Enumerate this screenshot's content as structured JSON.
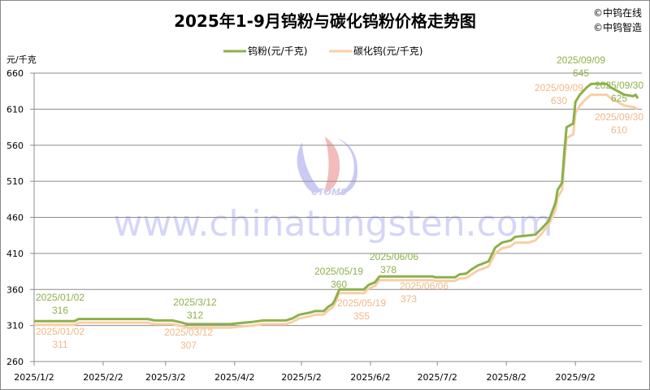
{
  "chart_data": {
    "type": "line",
    "title": "2025年1-9月钨粉与碳化钨粉价格走势图",
    "ylabel": "元/千克",
    "xlabel": "",
    "ylim": [
      260,
      660
    ],
    "yticks": [
      260,
      310,
      360,
      410,
      460,
      510,
      560,
      610,
      660
    ],
    "xlim": [
      "2025-01-02",
      "2025-09-30"
    ],
    "xticks": [
      {
        "date": "2025-01-02",
        "label": "2025/1/2"
      },
      {
        "date": "2025-02-02",
        "label": "2025/2/2"
      },
      {
        "date": "2025-03-02",
        "label": "2025/3/2"
      },
      {
        "date": "2025-04-02",
        "label": "2025/4/2"
      },
      {
        "date": "2025-05-02",
        "label": "2025/5/2"
      },
      {
        "date": "2025-06-02",
        "label": "2025/6/2"
      },
      {
        "date": "2025-07-02",
        "label": "2025/7/2"
      },
      {
        "date": "2025-08-02",
        "label": "2025/8/2"
      },
      {
        "date": "2025-09-02",
        "label": "2025/9/2"
      }
    ],
    "grid": true,
    "legend_position": "top-center",
    "series": [
      {
        "name": "钨粉(元/千克)",
        "color": "#8db04a",
        "points": [
          [
            "2025-01-02",
            316
          ],
          [
            "2025-01-20",
            316
          ],
          [
            "2025-01-22",
            319
          ],
          [
            "2025-02-22",
            319
          ],
          [
            "2025-02-25",
            317
          ],
          [
            "2025-03-05",
            317
          ],
          [
            "2025-03-08",
            315
          ],
          [
            "2025-03-12",
            312
          ],
          [
            "2025-03-31",
            312
          ],
          [
            "2025-04-03",
            313
          ],
          [
            "2025-04-10",
            315
          ],
          [
            "2025-04-15",
            317
          ],
          [
            "2025-04-25",
            317
          ],
          [
            "2025-04-28",
            320
          ],
          [
            "2025-05-01",
            325
          ],
          [
            "2025-05-06",
            328
          ],
          [
            "2025-05-08",
            330
          ],
          [
            "2025-05-12",
            330
          ],
          [
            "2025-05-14",
            336
          ],
          [
            "2025-05-16",
            340
          ],
          [
            "2025-05-17",
            345
          ],
          [
            "2025-05-19",
            360
          ],
          [
            "2025-05-30",
            360
          ],
          [
            "2025-06-01",
            366
          ],
          [
            "2025-06-04",
            370
          ],
          [
            "2025-06-06",
            378
          ],
          [
            "2025-06-30",
            378
          ],
          [
            "2025-07-01",
            377
          ],
          [
            "2025-07-10",
            377
          ],
          [
            "2025-07-12",
            381
          ],
          [
            "2025-07-15",
            382
          ],
          [
            "2025-07-17",
            387
          ],
          [
            "2025-07-20",
            393
          ],
          [
            "2025-07-25",
            399
          ],
          [
            "2025-07-28",
            418
          ],
          [
            "2025-07-31",
            425
          ],
          [
            "2025-08-04",
            428
          ],
          [
            "2025-08-06",
            433
          ],
          [
            "2025-08-12",
            435
          ],
          [
            "2025-08-15",
            436
          ],
          [
            "2025-08-18",
            445
          ],
          [
            "2025-08-21",
            455
          ],
          [
            "2025-08-24",
            480
          ],
          [
            "2025-08-25",
            498
          ],
          [
            "2025-08-27",
            508
          ],
          [
            "2025-08-28",
            550
          ],
          [
            "2025-08-29",
            585
          ],
          [
            "2025-09-01",
            590
          ],
          [
            "2025-09-02",
            620
          ],
          [
            "2025-09-04",
            630
          ],
          [
            "2025-09-07",
            640
          ],
          [
            "2025-09-09",
            645
          ],
          [
            "2025-09-16",
            645
          ],
          [
            "2025-09-18",
            640
          ],
          [
            "2025-09-21",
            635
          ],
          [
            "2025-09-24",
            630
          ],
          [
            "2025-09-28",
            628
          ],
          [
            "2025-09-29",
            630
          ],
          [
            "2025-09-30",
            625
          ]
        ],
        "annotations": [
          {
            "date": "2025-01-02",
            "label": "2025/01/02",
            "value": "316"
          },
          {
            "date": "2025-03-12",
            "label": "2025/3/12",
            "value": "312"
          },
          {
            "date": "2025-05-19",
            "label": "2025/05/19",
            "value": "360"
          },
          {
            "date": "2025-06-06",
            "label": "2025/06/06",
            "value": "378"
          },
          {
            "date": "2025-09-09",
            "label": "2025/09/09",
            "value": "645"
          },
          {
            "date": "2025-09-30",
            "label": "2025/09/30",
            "value": "625"
          }
        ]
      },
      {
        "name": "碳化钨(元/千克)",
        "color": "#f8cfa6",
        "points": [
          [
            "2025-01-02",
            311
          ],
          [
            "2025-01-20",
            311
          ],
          [
            "2025-01-22",
            314
          ],
          [
            "2025-02-22",
            314
          ],
          [
            "2025-02-25",
            312
          ],
          [
            "2025-03-05",
            312
          ],
          [
            "2025-03-08",
            310
          ],
          [
            "2025-03-12",
            307
          ],
          [
            "2025-03-31",
            307
          ],
          [
            "2025-04-03",
            308
          ],
          [
            "2025-04-10",
            310
          ],
          [
            "2025-04-15",
            312
          ],
          [
            "2025-04-25",
            312
          ],
          [
            "2025-04-28",
            315
          ],
          [
            "2025-05-01",
            320
          ],
          [
            "2025-05-06",
            323
          ],
          [
            "2025-05-08",
            325
          ],
          [
            "2025-05-12",
            325
          ],
          [
            "2025-05-14",
            331
          ],
          [
            "2025-05-16",
            335
          ],
          [
            "2025-05-17",
            340
          ],
          [
            "2025-05-19",
            355
          ],
          [
            "2025-05-30",
            355
          ],
          [
            "2025-06-01",
            361
          ],
          [
            "2025-06-04",
            365
          ],
          [
            "2025-06-06",
            373
          ],
          [
            "2025-06-30",
            373
          ],
          [
            "2025-07-01",
            372
          ],
          [
            "2025-07-10",
            372
          ],
          [
            "2025-07-12",
            375
          ],
          [
            "2025-07-15",
            376
          ],
          [
            "2025-07-17",
            380
          ],
          [
            "2025-07-20",
            386
          ],
          [
            "2025-07-25",
            392
          ],
          [
            "2025-07-28",
            410
          ],
          [
            "2025-07-31",
            417
          ],
          [
            "2025-08-04",
            420
          ],
          [
            "2025-08-06",
            425
          ],
          [
            "2025-08-12",
            425
          ],
          [
            "2025-08-15",
            428
          ],
          [
            "2025-08-18",
            438
          ],
          [
            "2025-08-21",
            450
          ],
          [
            "2025-08-24",
            470
          ],
          [
            "2025-08-25",
            488
          ],
          [
            "2025-08-27",
            498
          ],
          [
            "2025-08-28",
            535
          ],
          [
            "2025-08-29",
            570
          ],
          [
            "2025-09-01",
            575
          ],
          [
            "2025-09-02",
            605
          ],
          [
            "2025-09-04",
            615
          ],
          [
            "2025-09-07",
            625
          ],
          [
            "2025-09-09",
            630
          ],
          [
            "2025-09-16",
            630
          ],
          [
            "2025-09-18",
            625
          ],
          [
            "2025-09-21",
            620
          ],
          [
            "2025-09-24",
            615
          ],
          [
            "2025-09-28",
            613
          ],
          [
            "2025-09-30",
            610
          ]
        ],
        "annotations": [
          {
            "date": "2025-01-02",
            "label": "2025/01/02",
            "value": "311"
          },
          {
            "date": "2025-03-12",
            "label": "2025/03/12",
            "value": "307"
          },
          {
            "date": "2025-05-19",
            "label": "2025/05/19",
            "value": "355"
          },
          {
            "date": "2025-06-06",
            "label": "2025/06/06",
            "value": "373"
          },
          {
            "date": "2025-09-09",
            "label": "2025/09/09",
            "value": "630"
          },
          {
            "date": "2025-09-30",
            "label": "2025/09/30",
            "value": "610"
          }
        ]
      }
    ]
  },
  "branding": {
    "line1": "©中钨在线",
    "line2": "©中钨智造"
  },
  "watermark": {
    "text": "www.chinatungsten.com",
    "logo": "CTOMS"
  }
}
